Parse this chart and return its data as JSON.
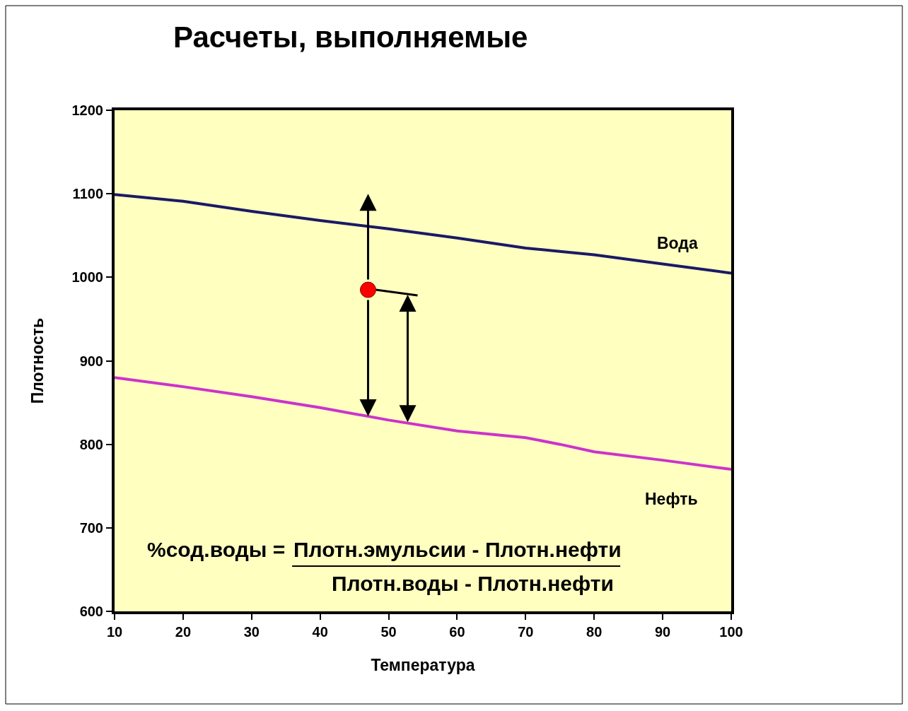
{
  "chart_data": {
    "type": "line",
    "title": "Расчеты, выполняемые",
    "xlabel": "Температура",
    "ylabel": "Плотность",
    "annotations": [
      "%сод.воды =",
      "Плотн.эмульсии - Плотн.нефти",
      "Плотн.воды - Плотн.нефти"
    ],
    "x": [
      10,
      20,
      30,
      40,
      50,
      60,
      70,
      75,
      80,
      90,
      100
    ],
    "series": [
      {
        "name": "Вода",
        "color": "#1a1a66",
        "values": [
          1099,
          1091,
          1079,
          1068,
          1058,
          1047,
          1035,
          1031,
          1027,
          1016,
          1005
        ]
      },
      {
        "name": "Нефть",
        "color": "#cc33cc",
        "values": [
          880,
          869,
          857,
          844,
          829,
          816,
          808,
          800,
          791,
          781,
          770
        ]
      },
      {
        "type": "scatter",
        "x": [
          47
        ],
        "color": "#ff0000",
        "marker": "circle",
        "values": [
          985
        ]
      }
    ],
    "xlim": [
      10,
      100
    ],
    "ylim": [
      600,
      1200
    ],
    "xticks": [
      10,
      20,
      30,
      40,
      50,
      60,
      70,
      80,
      90,
      100
    ],
    "yticks": [
      600,
      700,
      800,
      900,
      1000,
      1100,
      1200
    ]
  }
}
